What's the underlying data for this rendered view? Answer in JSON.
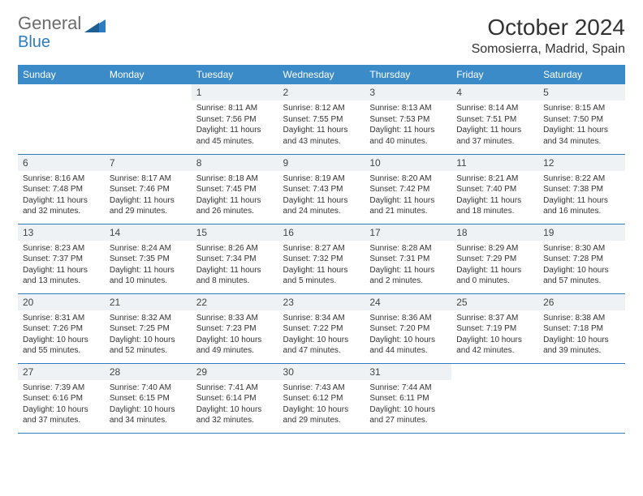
{
  "logo": {
    "word1": "General",
    "word2": "Blue"
  },
  "title": "October 2024",
  "location": "Somosierra, Madrid, Spain",
  "dow": [
    "Sunday",
    "Monday",
    "Tuesday",
    "Wednesday",
    "Thursday",
    "Friday",
    "Saturday"
  ],
  "colors": {
    "header_bg": "#3b8bc9",
    "header_fg": "#ffffff",
    "row_divider": "#2d7cc1",
    "daynum_bg": "#eef2f4",
    "logo_gray": "#6b6b6b",
    "logo_blue": "#2d7cc1"
  },
  "weeks": [
    [
      {
        "n": "",
        "sr": "",
        "ss": "",
        "dl": ""
      },
      {
        "n": "",
        "sr": "",
        "ss": "",
        "dl": ""
      },
      {
        "n": "1",
        "sr": "Sunrise: 8:11 AM",
        "ss": "Sunset: 7:56 PM",
        "dl": "Daylight: 11 hours and 45 minutes."
      },
      {
        "n": "2",
        "sr": "Sunrise: 8:12 AM",
        "ss": "Sunset: 7:55 PM",
        "dl": "Daylight: 11 hours and 43 minutes."
      },
      {
        "n": "3",
        "sr": "Sunrise: 8:13 AM",
        "ss": "Sunset: 7:53 PM",
        "dl": "Daylight: 11 hours and 40 minutes."
      },
      {
        "n": "4",
        "sr": "Sunrise: 8:14 AM",
        "ss": "Sunset: 7:51 PM",
        "dl": "Daylight: 11 hours and 37 minutes."
      },
      {
        "n": "5",
        "sr": "Sunrise: 8:15 AM",
        "ss": "Sunset: 7:50 PM",
        "dl": "Daylight: 11 hours and 34 minutes."
      }
    ],
    [
      {
        "n": "6",
        "sr": "Sunrise: 8:16 AM",
        "ss": "Sunset: 7:48 PM",
        "dl": "Daylight: 11 hours and 32 minutes."
      },
      {
        "n": "7",
        "sr": "Sunrise: 8:17 AM",
        "ss": "Sunset: 7:46 PM",
        "dl": "Daylight: 11 hours and 29 minutes."
      },
      {
        "n": "8",
        "sr": "Sunrise: 8:18 AM",
        "ss": "Sunset: 7:45 PM",
        "dl": "Daylight: 11 hours and 26 minutes."
      },
      {
        "n": "9",
        "sr": "Sunrise: 8:19 AM",
        "ss": "Sunset: 7:43 PM",
        "dl": "Daylight: 11 hours and 24 minutes."
      },
      {
        "n": "10",
        "sr": "Sunrise: 8:20 AM",
        "ss": "Sunset: 7:42 PM",
        "dl": "Daylight: 11 hours and 21 minutes."
      },
      {
        "n": "11",
        "sr": "Sunrise: 8:21 AM",
        "ss": "Sunset: 7:40 PM",
        "dl": "Daylight: 11 hours and 18 minutes."
      },
      {
        "n": "12",
        "sr": "Sunrise: 8:22 AM",
        "ss": "Sunset: 7:38 PM",
        "dl": "Daylight: 11 hours and 16 minutes."
      }
    ],
    [
      {
        "n": "13",
        "sr": "Sunrise: 8:23 AM",
        "ss": "Sunset: 7:37 PM",
        "dl": "Daylight: 11 hours and 13 minutes."
      },
      {
        "n": "14",
        "sr": "Sunrise: 8:24 AM",
        "ss": "Sunset: 7:35 PM",
        "dl": "Daylight: 11 hours and 10 minutes."
      },
      {
        "n": "15",
        "sr": "Sunrise: 8:26 AM",
        "ss": "Sunset: 7:34 PM",
        "dl": "Daylight: 11 hours and 8 minutes."
      },
      {
        "n": "16",
        "sr": "Sunrise: 8:27 AM",
        "ss": "Sunset: 7:32 PM",
        "dl": "Daylight: 11 hours and 5 minutes."
      },
      {
        "n": "17",
        "sr": "Sunrise: 8:28 AM",
        "ss": "Sunset: 7:31 PM",
        "dl": "Daylight: 11 hours and 2 minutes."
      },
      {
        "n": "18",
        "sr": "Sunrise: 8:29 AM",
        "ss": "Sunset: 7:29 PM",
        "dl": "Daylight: 11 hours and 0 minutes."
      },
      {
        "n": "19",
        "sr": "Sunrise: 8:30 AM",
        "ss": "Sunset: 7:28 PM",
        "dl": "Daylight: 10 hours and 57 minutes."
      }
    ],
    [
      {
        "n": "20",
        "sr": "Sunrise: 8:31 AM",
        "ss": "Sunset: 7:26 PM",
        "dl": "Daylight: 10 hours and 55 minutes."
      },
      {
        "n": "21",
        "sr": "Sunrise: 8:32 AM",
        "ss": "Sunset: 7:25 PM",
        "dl": "Daylight: 10 hours and 52 minutes."
      },
      {
        "n": "22",
        "sr": "Sunrise: 8:33 AM",
        "ss": "Sunset: 7:23 PM",
        "dl": "Daylight: 10 hours and 49 minutes."
      },
      {
        "n": "23",
        "sr": "Sunrise: 8:34 AM",
        "ss": "Sunset: 7:22 PM",
        "dl": "Daylight: 10 hours and 47 minutes."
      },
      {
        "n": "24",
        "sr": "Sunrise: 8:36 AM",
        "ss": "Sunset: 7:20 PM",
        "dl": "Daylight: 10 hours and 44 minutes."
      },
      {
        "n": "25",
        "sr": "Sunrise: 8:37 AM",
        "ss": "Sunset: 7:19 PM",
        "dl": "Daylight: 10 hours and 42 minutes."
      },
      {
        "n": "26",
        "sr": "Sunrise: 8:38 AM",
        "ss": "Sunset: 7:18 PM",
        "dl": "Daylight: 10 hours and 39 minutes."
      }
    ],
    [
      {
        "n": "27",
        "sr": "Sunrise: 7:39 AM",
        "ss": "Sunset: 6:16 PM",
        "dl": "Daylight: 10 hours and 37 minutes."
      },
      {
        "n": "28",
        "sr": "Sunrise: 7:40 AM",
        "ss": "Sunset: 6:15 PM",
        "dl": "Daylight: 10 hours and 34 minutes."
      },
      {
        "n": "29",
        "sr": "Sunrise: 7:41 AM",
        "ss": "Sunset: 6:14 PM",
        "dl": "Daylight: 10 hours and 32 minutes."
      },
      {
        "n": "30",
        "sr": "Sunrise: 7:43 AM",
        "ss": "Sunset: 6:12 PM",
        "dl": "Daylight: 10 hours and 29 minutes."
      },
      {
        "n": "31",
        "sr": "Sunrise: 7:44 AM",
        "ss": "Sunset: 6:11 PM",
        "dl": "Daylight: 10 hours and 27 minutes."
      },
      {
        "n": "",
        "sr": "",
        "ss": "",
        "dl": ""
      },
      {
        "n": "",
        "sr": "",
        "ss": "",
        "dl": ""
      }
    ]
  ]
}
